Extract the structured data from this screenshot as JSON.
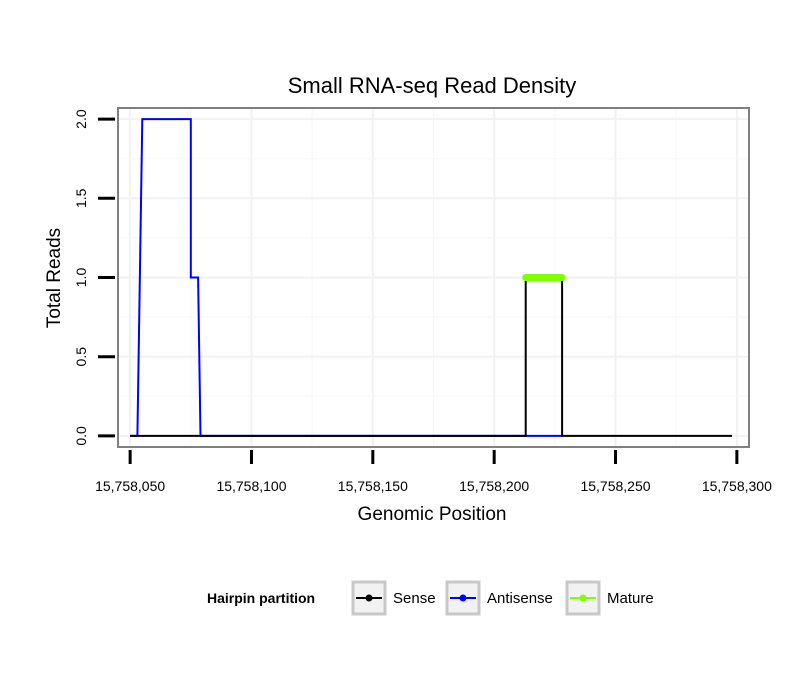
{
  "chart_data": {
    "type": "line",
    "title": "Small RNA-seq Read Density",
    "xlabel": "Genomic Position",
    "ylabel": "Total Reads",
    "xlim": [
      15758045,
      15758305
    ],
    "ylim": [
      -0.07,
      2.07
    ],
    "x_ticks": [
      15758050,
      15758100,
      15758150,
      15758200,
      15758250,
      15758300
    ],
    "x_tick_labels": [
      "15,758,050",
      "15,758,100",
      "15,758,150",
      "15,758,200",
      "15,758,250",
      "15,758,300"
    ],
    "y_ticks": [
      0,
      0.5,
      1,
      1.5,
      2
    ],
    "y_tick_labels": [
      "0.0",
      "0.5",
      "1.0",
      "1.5",
      "2.0"
    ],
    "grid": true,
    "legend": {
      "title": "Hairpin partition",
      "position": "bottom",
      "entries": [
        "Sense",
        "Antisense",
        "Mature"
      ]
    },
    "series": [
      {
        "name": "Sense",
        "color": "#000000",
        "x": [
          15758050,
          15758213,
          15758213,
          15758228,
          15758228,
          15758298
        ],
        "y": [
          0,
          0,
          1,
          1,
          0,
          0
        ]
      },
      {
        "name": "Antisense",
        "color": "#0000ff",
        "x": [
          15758050,
          15758053,
          15758055,
          15758075,
          15758075,
          15758077,
          15758077,
          15758078,
          15758079,
          15758228
        ],
        "y": [
          0,
          0,
          2,
          2,
          1,
          1,
          1,
          1,
          0,
          0
        ]
      },
      {
        "name": "Mature",
        "color": "#7fff00",
        "x": [
          15758213,
          15758228
        ],
        "y": [
          1,
          1
        ]
      }
    ]
  }
}
